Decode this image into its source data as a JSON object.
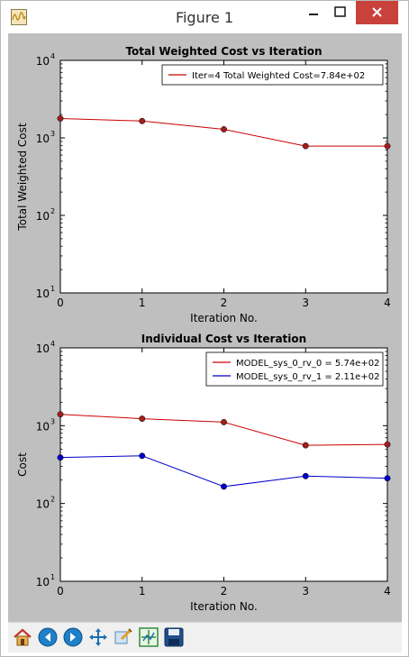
{
  "window": {
    "title": "Figure 1"
  },
  "toolbar": {
    "tools": [
      {
        "name": "home-icon"
      },
      {
        "name": "back-arrow-icon"
      },
      {
        "name": "forward-arrow-icon"
      },
      {
        "name": "pan-icon"
      },
      {
        "name": "zoom-icon"
      },
      {
        "name": "configure-subplots-icon"
      },
      {
        "name": "save-icon"
      }
    ]
  },
  "colors": {
    "red": "#cc0000",
    "blue": "#0000cc",
    "marker_red": "#a01e1e",
    "close": "#c8413b"
  },
  "chart_data": [
    {
      "type": "line",
      "title": "Total Weighted Cost vs Iteration",
      "xlabel": "Iteration No.",
      "ylabel": "Total Weighted Cost",
      "yscale": "log",
      "xlim": [
        0,
        4
      ],
      "ylim": [
        10,
        10000
      ],
      "x_ticks": [
        "0",
        "1",
        "2",
        "3",
        "4"
      ],
      "y_ticks": [
        {
          "base": "10",
          "exp": "1"
        },
        {
          "base": "10",
          "exp": "2"
        },
        {
          "base": "10",
          "exp": "3"
        },
        {
          "base": "10",
          "exp": "4"
        }
      ],
      "legend_position": "top-right",
      "x": [
        0,
        1,
        2,
        3,
        4
      ],
      "series": [
        {
          "name": "Iter=4    Total Weighted Cost=7.84e+02",
          "color": "#cc0000",
          "values": [
            1780,
            1650,
            1290,
            784,
            784
          ]
        }
      ]
    },
    {
      "type": "line",
      "title": "Individual Cost vs Iteration",
      "xlabel": "Iteration No.",
      "ylabel": "Cost",
      "yscale": "log",
      "xlim": [
        0,
        4
      ],
      "ylim": [
        10,
        10000
      ],
      "x_ticks": [
        "0",
        "1",
        "2",
        "3",
        "4"
      ],
      "y_ticks": [
        {
          "base": "10",
          "exp": "1"
        },
        {
          "base": "10",
          "exp": "2"
        },
        {
          "base": "10",
          "exp": "3"
        },
        {
          "base": "10",
          "exp": "4"
        }
      ],
      "legend_position": "top-right",
      "x": [
        0,
        1,
        2,
        3,
        4
      ],
      "series": [
        {
          "name": "MODEL_sys_0_rv_0 = 5.74e+02",
          "color": "#cc0000",
          "values": [
            1400,
            1230,
            1110,
            560,
            574
          ]
        },
        {
          "name": "MODEL_sys_0_rv_1 = 2.11e+02",
          "color": "#0000cc",
          "values": [
            390,
            410,
            165,
            225,
            211
          ]
        }
      ]
    }
  ]
}
